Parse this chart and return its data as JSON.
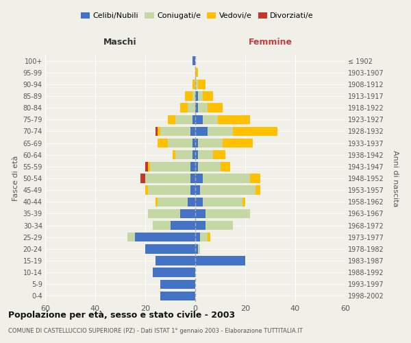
{
  "age_groups": [
    "0-4",
    "5-9",
    "10-14",
    "15-19",
    "20-24",
    "25-29",
    "30-34",
    "35-39",
    "40-44",
    "45-49",
    "50-54",
    "55-59",
    "60-64",
    "65-69",
    "70-74",
    "75-79",
    "80-84",
    "85-89",
    "90-94",
    "95-99",
    "100+"
  ],
  "birth_years": [
    "1998-2002",
    "1993-1997",
    "1988-1992",
    "1983-1987",
    "1978-1982",
    "1973-1977",
    "1968-1972",
    "1963-1967",
    "1958-1962",
    "1953-1957",
    "1948-1952",
    "1943-1947",
    "1938-1942",
    "1933-1937",
    "1928-1932",
    "1923-1927",
    "1918-1922",
    "1913-1917",
    "1908-1912",
    "1903-1907",
    "≤ 1902"
  ],
  "maschi": {
    "celibi": [
      14,
      14,
      17,
      16,
      20,
      24,
      10,
      6,
      3,
      2,
      2,
      2,
      1,
      1,
      2,
      1,
      0,
      0,
      0,
      0,
      1
    ],
    "coniugati": [
      0,
      0,
      0,
      0,
      0,
      3,
      7,
      13,
      12,
      17,
      18,
      16,
      7,
      10,
      12,
      7,
      3,
      1,
      0,
      0,
      0
    ],
    "vedovi": [
      0,
      0,
      0,
      0,
      0,
      0,
      0,
      0,
      1,
      1,
      0,
      1,
      1,
      4,
      1,
      3,
      3,
      3,
      1,
      0,
      0
    ],
    "divorziati": [
      0,
      0,
      0,
      0,
      0,
      0,
      0,
      0,
      0,
      0,
      2,
      1,
      0,
      0,
      1,
      0,
      0,
      0,
      0,
      0,
      0
    ]
  },
  "femmine": {
    "nubili": [
      0,
      0,
      0,
      20,
      1,
      2,
      4,
      4,
      3,
      2,
      3,
      1,
      1,
      1,
      5,
      3,
      1,
      1,
      0,
      0,
      0
    ],
    "coniugate": [
      0,
      0,
      0,
      0,
      1,
      3,
      11,
      18,
      16,
      22,
      19,
      9,
      6,
      10,
      10,
      6,
      4,
      2,
      1,
      0,
      0
    ],
    "vedove": [
      0,
      0,
      0,
      0,
      0,
      1,
      0,
      0,
      1,
      2,
      4,
      4,
      5,
      12,
      18,
      13,
      6,
      4,
      3,
      1,
      0
    ],
    "divorziate": [
      0,
      0,
      0,
      0,
      0,
      0,
      0,
      0,
      0,
      0,
      0,
      0,
      0,
      0,
      0,
      0,
      0,
      0,
      0,
      0,
      0
    ]
  },
  "colors": {
    "celibi_nubili": "#4472c4",
    "coniugati": "#c5d8a4",
    "vedovi": "#ffc000",
    "divorziati": "#c0392b"
  },
  "title": "Popolazione per età, sesso e stato civile - 2003",
  "subtitle": "COMUNE DI CASTELLUCCIO SUPERIORE (PZ) - Dati ISTAT 1° gennaio 2003 - Elaborazione TUTTITALIA.IT",
  "xlabel_left": "Maschi",
  "xlabel_right": "Femmine",
  "ylabel_left": "Fasce di età",
  "ylabel_right": "Anni di nascita",
  "xlim": 60,
  "legend_labels": [
    "Celibi/Nubili",
    "Coniugati/e",
    "Vedovi/e",
    "Divorziati/e"
  ],
  "bg_color": "#f0f0e8"
}
